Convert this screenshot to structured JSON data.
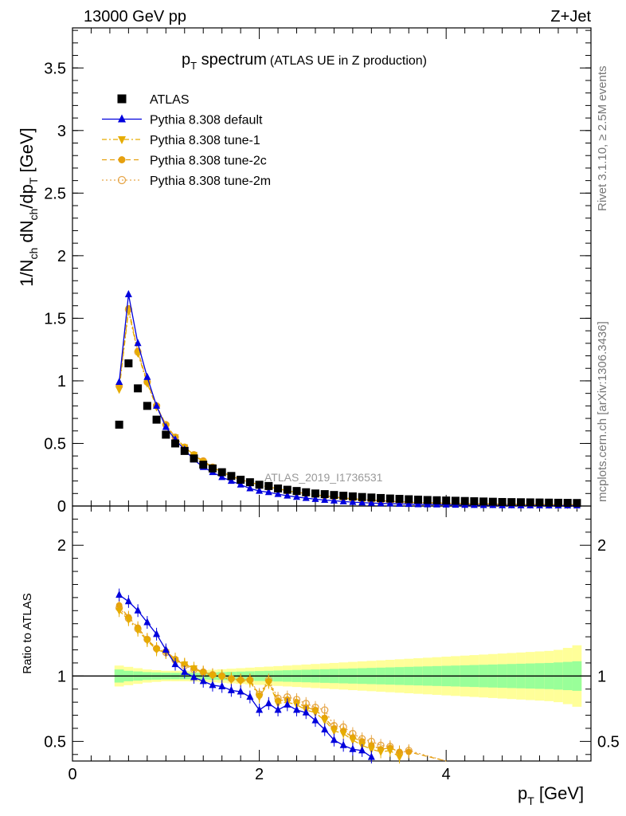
{
  "header": {
    "left": "13000 GeV pp",
    "right": "Z+Jet"
  },
  "plot": {
    "title_main": "p",
    "title_sub": "T",
    "title_word": " spectrum",
    "title_note": "(ATLAS UE in Z production)",
    "watermark": "ATLAS_2019_I1736531",
    "side_rivet": "Rivet 3.1.10, ≥ 2.5M events",
    "side_mcplots": "mcplots.cern.ch [arXiv:1306.3436]"
  },
  "chart_data": [
    {
      "type": "scatter",
      "title": "p_T spectrum (ATLAS UE in Z production)",
      "ylabel": "1/N_ch dN_ch/dp_T [GeV]",
      "xlabel": "p_T [GeV]",
      "xlim": [
        0,
        5.55
      ],
      "ylim": [
        0,
        3.82
      ],
      "yticks": [
        0,
        0.5,
        1,
        1.5,
        2,
        2.5,
        3,
        3.5
      ],
      "yticklabels": [
        "0",
        "0.5",
        "1",
        "1.5",
        "2",
        "2.5",
        "3",
        "3.5"
      ],
      "x": [
        0.5,
        0.6,
        0.7,
        0.8,
        0.9,
        1.0,
        1.1,
        1.2,
        1.3,
        1.4,
        1.5,
        1.6,
        1.7,
        1.8,
        1.9,
        2.0,
        2.1,
        2.2,
        2.3,
        2.4,
        2.5,
        2.6,
        2.7,
        2.8,
        2.9,
        3.0,
        3.1,
        3.2,
        3.3,
        3.4,
        3.5,
        3.6,
        3.7,
        3.8,
        3.9,
        4.0,
        4.1,
        4.2,
        4.3,
        4.4,
        4.5,
        4.6,
        4.7,
        4.8,
        4.9,
        5.0,
        5.1,
        5.2,
        5.3,
        5.4
      ],
      "series": [
        {
          "name": "ATLAS",
          "color": "#000000",
          "marker": "square",
          "values": [
            0.65,
            1.14,
            0.94,
            0.8,
            0.69,
            0.57,
            0.5,
            0.44,
            0.38,
            0.33,
            0.3,
            0.27,
            0.24,
            0.21,
            0.19,
            0.17,
            0.16,
            0.14,
            0.13,
            0.12,
            0.11,
            0.1,
            0.095,
            0.088,
            0.082,
            0.077,
            0.072,
            0.068,
            0.064,
            0.06,
            0.057,
            0.054,
            0.051,
            0.048,
            0.046,
            0.044,
            0.042,
            0.04,
            0.038,
            0.036,
            0.034,
            0.032,
            0.031,
            0.03,
            0.029,
            0.028,
            0.027,
            0.026,
            0.025,
            0.024
          ]
        },
        {
          "name": "Pythia 8.308 default",
          "color": "#0000dd",
          "marker": "triangle-up",
          "values": [
            0.99,
            1.69,
            1.3,
            1.03,
            0.8,
            0.63,
            0.53,
            0.45,
            0.37,
            0.31,
            0.27,
            0.23,
            0.2,
            0.17,
            0.14,
            0.12,
            0.11,
            0.095,
            0.082,
            0.072,
            0.063,
            0.055,
            0.048,
            0.042,
            0.036,
            0.031,
            0.027,
            0.024,
            0.021,
            0.019,
            0.017,
            0.015,
            0.013,
            0.012,
            0.011,
            0.01,
            0.009,
            0.008,
            0.007,
            0.006,
            0.006,
            0.005,
            0.005,
            0.004,
            0.004,
            0.004,
            0.003,
            0.003,
            0.003,
            0.003
          ]
        },
        {
          "name": "Pythia 8.308 tune-1",
          "color": "#e6ac00",
          "marker": "triangle-down",
          "values": [
            0.93,
            1.56,
            1.22,
            0.98,
            0.79,
            0.64,
            0.55,
            0.47,
            0.41,
            0.35,
            0.31,
            0.27,
            0.24,
            0.21,
            0.19,
            0.17,
            0.15,
            0.14,
            0.12,
            0.11,
            0.1,
            0.09,
            0.08,
            0.07,
            0.063,
            0.057,
            0.051,
            0.046,
            0.041,
            0.037,
            0.033,
            0.03,
            0.027,
            0.025,
            0.023,
            0.021,
            0.019,
            0.018,
            0.017,
            0.016,
            0.015,
            0.014,
            0.013,
            0.012,
            0.011,
            0.011,
            0.01,
            0.01,
            0.009,
            0.009
          ]
        },
        {
          "name": "Pythia 8.308 tune-2c",
          "color": "#e6a00f",
          "marker": "circle",
          "values": [
            0.97,
            1.58,
            1.24,
            0.99,
            0.8,
            0.65,
            0.55,
            0.47,
            0.41,
            0.36,
            0.31,
            0.27,
            0.24,
            0.21,
            0.19,
            0.17,
            0.15,
            0.14,
            0.12,
            0.11,
            0.1,
            0.09,
            0.08,
            0.072,
            0.065,
            0.058,
            0.052,
            0.047,
            0.042,
            0.038,
            0.034,
            0.031,
            0.028,
            0.026,
            0.024,
            0.022,
            0.02,
            0.019,
            0.018,
            0.017,
            0.016,
            0.015,
            0.014,
            0.013,
            0.012,
            0.012,
            0.011,
            0.011,
            0.01,
            0.01
          ]
        },
        {
          "name": "Pythia 8.308 tune-2m",
          "color": "#e6a64a",
          "marker": "circle-open",
          "values": [
            0.96,
            1.57,
            1.23,
            0.99,
            0.8,
            0.65,
            0.55,
            0.47,
            0.41,
            0.36,
            0.31,
            0.27,
            0.24,
            0.21,
            0.19,
            0.17,
            0.15,
            0.14,
            0.12,
            0.11,
            0.1,
            0.09,
            0.082,
            0.074,
            0.066,
            0.059,
            0.053,
            0.048,
            0.043,
            0.039,
            0.035,
            0.032,
            0.029,
            0.027,
            0.025,
            0.023,
            0.021,
            0.02,
            0.019,
            0.018,
            0.017,
            0.016,
            0.015,
            0.014,
            0.013,
            0.013,
            0.012,
            0.012,
            0.011,
            0.011
          ]
        }
      ]
    },
    {
      "type": "scatter",
      "ylabel": "Ratio to ATLAS",
      "xlabel": "p_T [GeV]",
      "xlim": [
        0,
        5.55
      ],
      "ylim": [
        0.35,
        2.3
      ],
      "yticks": [
        0.5,
        1,
        2
      ],
      "yticklabels": [
        "0.5",
        "1",
        "2"
      ],
      "xticks": [
        0,
        2,
        4
      ],
      "xticklabels": [
        "0",
        "2",
        "4"
      ],
      "reference_line": 1,
      "band_x": [
        0.5,
        0.6,
        0.7,
        0.8,
        0.9,
        1.0,
        1.1,
        1.2,
        1.3,
        1.4,
        1.5,
        1.6,
        1.7,
        1.8,
        1.9,
        2.0,
        2.1,
        2.2,
        2.3,
        2.4,
        2.5,
        2.6,
        2.7,
        2.8,
        2.9,
        3.0,
        3.1,
        3.2,
        3.3,
        3.4,
        3.5,
        3.6,
        3.7,
        3.8,
        3.9,
        4.0,
        4.1,
        4.2,
        4.3,
        4.4,
        4.5,
        4.6,
        4.7,
        4.8,
        4.9,
        5.0,
        5.1,
        5.2,
        5.3,
        5.4
      ],
      "band_stat_half": [
        0.05,
        0.04,
        0.035,
        0.03,
        0.028,
        0.026,
        0.025,
        0.025,
        0.025,
        0.026,
        0.028,
        0.03,
        0.032,
        0.034,
        0.036,
        0.038,
        0.04,
        0.042,
        0.044,
        0.046,
        0.048,
        0.05,
        0.052,
        0.054,
        0.056,
        0.058,
        0.06,
        0.062,
        0.064,
        0.066,
        0.068,
        0.07,
        0.072,
        0.074,
        0.076,
        0.078,
        0.08,
        0.082,
        0.084,
        0.086,
        0.088,
        0.09,
        0.092,
        0.094,
        0.096,
        0.098,
        0.1,
        0.104,
        0.108,
        0.113
      ],
      "band_total_half": [
        0.08,
        0.07,
        0.06,
        0.05,
        0.045,
        0.04,
        0.04,
        0.04,
        0.042,
        0.045,
        0.048,
        0.052,
        0.056,
        0.06,
        0.064,
        0.068,
        0.072,
        0.076,
        0.08,
        0.084,
        0.088,
        0.092,
        0.096,
        0.1,
        0.104,
        0.108,
        0.112,
        0.116,
        0.12,
        0.124,
        0.128,
        0.132,
        0.136,
        0.14,
        0.144,
        0.148,
        0.152,
        0.156,
        0.16,
        0.164,
        0.168,
        0.172,
        0.176,
        0.18,
        0.184,
        0.188,
        0.192,
        0.2,
        0.215,
        0.235
      ],
      "band_colors": {
        "stat": "#99ff99",
        "total": "#ffff99"
      },
      "series": [
        {
          "name": "Pythia 8.308 default",
          "color": "#0000dd",
          "marker": "triangle-up",
          "x": [
            0.5,
            0.6,
            0.7,
            0.8,
            0.9,
            1.0,
            1.1,
            1.2,
            1.3,
            1.4,
            1.5,
            1.6,
            1.7,
            1.8,
            1.9,
            2.0,
            2.1,
            2.2,
            2.3,
            2.4,
            2.5,
            2.6,
            2.7,
            2.8,
            2.9,
            3.0,
            3.1,
            3.2
          ],
          "values": [
            1.62,
            1.57,
            1.5,
            1.41,
            1.32,
            1.2,
            1.09,
            1.03,
            0.99,
            0.96,
            0.93,
            0.92,
            0.89,
            0.88,
            0.84,
            0.74,
            0.79,
            0.74,
            0.78,
            0.74,
            0.72,
            0.66,
            0.59,
            0.51,
            0.47,
            0.44,
            0.43,
            0.38
          ]
        },
        {
          "name": "Pythia 8.308 tune-1",
          "color": "#e6ac00",
          "marker": "triangle-down",
          "x": [
            0.5,
            0.6,
            0.7,
            0.8,
            0.9,
            1.0,
            1.1,
            1.2,
            1.3,
            1.4,
            1.5,
            1.6,
            1.7,
            1.8,
            1.9,
            2.0,
            2.1,
            2.2,
            2.3,
            2.4,
            2.5,
            2.6,
            2.7,
            2.8,
            2.9,
            3.0,
            3.1,
            3.2,
            3.3,
            3.4,
            3.5
          ],
          "values": [
            1.5,
            1.43,
            1.35,
            1.27,
            1.2,
            1.18,
            1.12,
            1.09,
            1.06,
            1.02,
            1.0,
            0.99,
            0.97,
            0.96,
            0.96,
            0.84,
            0.95,
            0.79,
            0.8,
            0.78,
            0.74,
            0.72,
            0.66,
            0.58,
            0.56,
            0.51,
            0.47,
            0.44,
            0.42,
            0.43,
            0.38
          ]
        },
        {
          "name": "Pythia 8.308 tune-2c",
          "color": "#e6a00f",
          "marker": "circle",
          "x": [
            0.5,
            0.6,
            0.7,
            0.8,
            0.9,
            1.0,
            1.1,
            1.2,
            1.3,
            1.4,
            1.5,
            1.6,
            1.7,
            1.8,
            1.9,
            2.0,
            2.1,
            2.2,
            2.3,
            2.4,
            2.5,
            2.6,
            2.7,
            2.8,
            2.9,
            3.0,
            3.1,
            3.2,
            3.3,
            3.4,
            3.5,
            3.6,
            4.0
          ],
          "values": [
            1.54,
            1.45,
            1.37,
            1.28,
            1.21,
            1.19,
            1.13,
            1.09,
            1.06,
            1.03,
            1.01,
            1.0,
            0.98,
            0.97,
            0.97,
            0.85,
            0.96,
            0.81,
            0.82,
            0.8,
            0.76,
            0.74,
            0.68,
            0.6,
            0.58,
            0.53,
            0.5,
            0.47,
            0.44,
            0.45,
            0.42,
            0.42,
            0.35
          ]
        },
        {
          "name": "Pythia 8.308 tune-2m",
          "color": "#e6a64a",
          "marker": "circle-open",
          "x": [
            0.5,
            0.6,
            0.7,
            0.8,
            0.9,
            1.0,
            1.1,
            1.2,
            1.3,
            1.4,
            1.5,
            1.6,
            1.7,
            1.8,
            1.9,
            2.0,
            2.1,
            2.2,
            2.3,
            2.4,
            2.5,
            2.6,
            2.7,
            2.8,
            2.9,
            3.0,
            3.1,
            3.2,
            3.3,
            3.4,
            3.5,
            3.6,
            4.0
          ],
          "values": [
            1.52,
            1.44,
            1.36,
            1.28,
            1.21,
            1.18,
            1.12,
            1.08,
            1.05,
            1.03,
            1.01,
            1.0,
            0.98,
            0.97,
            0.97,
            0.86,
            0.97,
            0.83,
            0.84,
            0.82,
            0.79,
            0.76,
            0.74,
            0.62,
            0.61,
            0.56,
            0.52,
            0.5,
            0.47,
            0.46,
            0.41,
            0.43,
            0.35
          ]
        }
      ]
    }
  ],
  "legend": {
    "entries": [
      {
        "label": "ATLAS",
        "color": "#000000",
        "marker": "square",
        "line": "none"
      },
      {
        "label": "Pythia 8.308 default",
        "color": "#0000dd",
        "marker": "triangle-up",
        "line": "solid"
      },
      {
        "label": "Pythia 8.308 tune-1",
        "color": "#e6ac00",
        "marker": "triangle-down",
        "line": "dashdot"
      },
      {
        "label": "Pythia 8.308 tune-2c",
        "color": "#e6a00f",
        "marker": "circle",
        "line": "dashed"
      },
      {
        "label": "Pythia 8.308 tune-2m",
        "color": "#e6a64a",
        "marker": "circle-open",
        "line": "dotted"
      }
    ]
  }
}
